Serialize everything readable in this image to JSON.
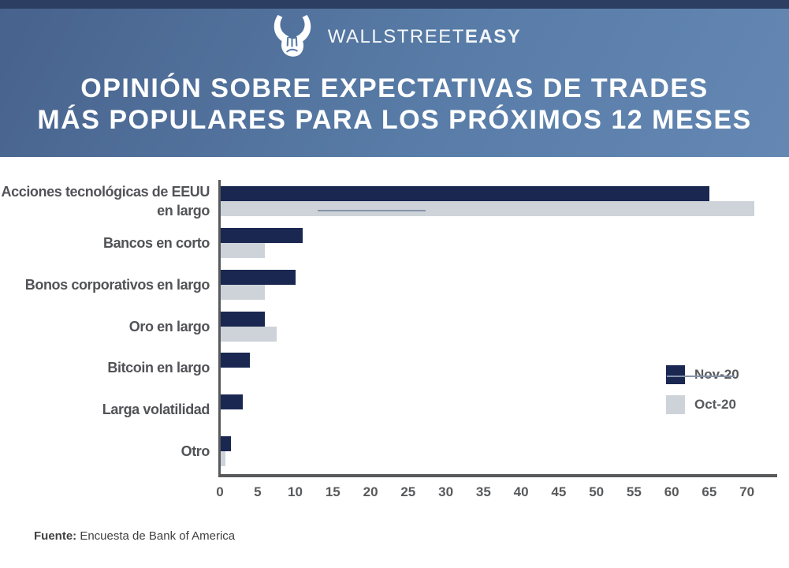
{
  "header": {
    "logo": {
      "icon": "bull-logo-icon",
      "brand_light": "WALLSTREET",
      "brand_bold": "EASY"
    },
    "title_line1": "OPINIÓN SOBRE EXPECTATIVAS DE TRADES",
    "title_line2": "MÁS POPULARES PARA LOS PRÓXIMOS 12 MESES"
  },
  "chart_data": {
    "type": "bar",
    "orientation": "horizontal",
    "title": "Opinión sobre expectativas de trades más populares para los próximos 12 meses",
    "categories": [
      "Acciones tecnológicas de EEUU en largo",
      "Bancos en corto",
      "Bonos corporativos en largo",
      "Oro en largo",
      "Bitcoin en largo",
      "Larga volatilidad",
      "Otro"
    ],
    "series": [
      {
        "name": "Nov-20",
        "color": "#1a2751",
        "values": [
          65,
          11,
          10,
          6,
          4,
          3,
          1.5
        ]
      },
      {
        "name": "Oct-20",
        "color": "#cdd3d9",
        "values": [
          71,
          6,
          6,
          7.5,
          0,
          0,
          0.7
        ]
      }
    ],
    "x_ticks": [
      0,
      5,
      10,
      15,
      20,
      25,
      30,
      35,
      40,
      45,
      50,
      55,
      60,
      65,
      70
    ],
    "xlim": [
      0,
      74
    ],
    "xlabel": "",
    "ylabel": "",
    "grid": false,
    "legend_position": "right"
  },
  "colors": {
    "header_gradient_start": "#47628c",
    "header_gradient_end": "#6488b3",
    "header_top_strip": "#2c3f62",
    "axis": "#58595b",
    "category_label": "#525357"
  },
  "footer": {
    "source_label": "Fuente:",
    "source_text": " Encuesta de Bank of America"
  }
}
